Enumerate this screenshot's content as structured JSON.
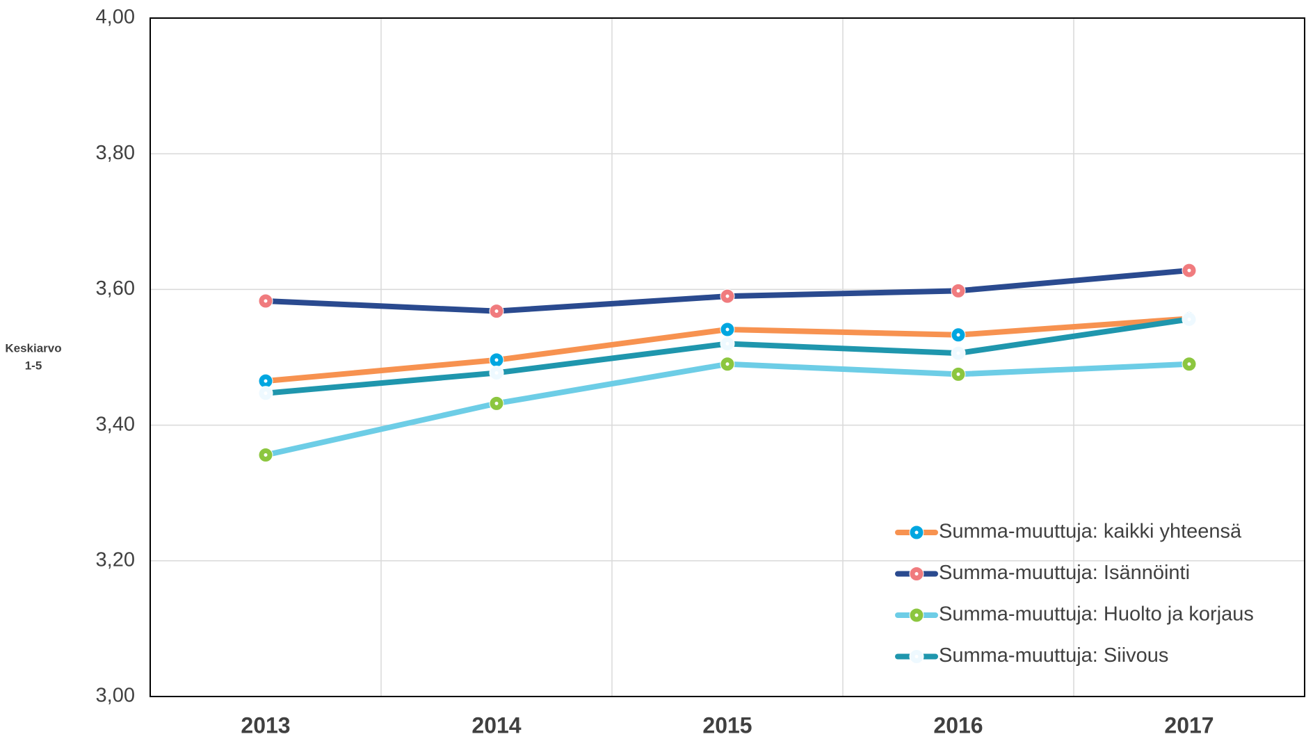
{
  "chart_data": {
    "type": "line",
    "ylabel": [
      "Keskiarvo",
      "1-5"
    ],
    "categories": [
      "2013",
      "2014",
      "2015",
      "2016",
      "2017"
    ],
    "series": [
      {
        "name": "Summa-muuttuja: kaikki yhteensä",
        "color": "#f79250",
        "marker_color": "#00a6e0",
        "values": [
          3.465,
          3.496,
          3.541,
          3.533,
          3.557
        ]
      },
      {
        "name": "Summa-muuttuja: Isännöinti",
        "color": "#2a4a8f",
        "marker_color": "#f07b7e",
        "values": [
          3.583,
          3.568,
          3.59,
          3.598,
          3.628
        ]
      },
      {
        "name": "Summa-muuttuja: Huolto ja korjaus",
        "color": "#6dcde6",
        "marker_color": "#8cc63f",
        "values": [
          3.356,
          3.432,
          3.49,
          3.475,
          3.49
        ]
      },
      {
        "name": "Summa-muuttuja: Siivous",
        "color": "#1f96ad",
        "marker_color": "#eef9ff",
        "values": [
          3.447,
          3.477,
          3.52,
          3.506,
          3.556
        ]
      }
    ],
    "ylim": [
      3.0,
      4.0
    ],
    "yticks": [
      {
        "value": 3.0,
        "label": "3,00"
      },
      {
        "value": 3.2,
        "label": "3,20"
      },
      {
        "value": 3.4,
        "label": "3,40"
      },
      {
        "value": 3.6,
        "label": "3,60"
      },
      {
        "value": 3.8,
        "label": "3,80"
      },
      {
        "value": 4.0,
        "label": "4,00"
      }
    ],
    "grid": true,
    "legend": "lower right"
  }
}
